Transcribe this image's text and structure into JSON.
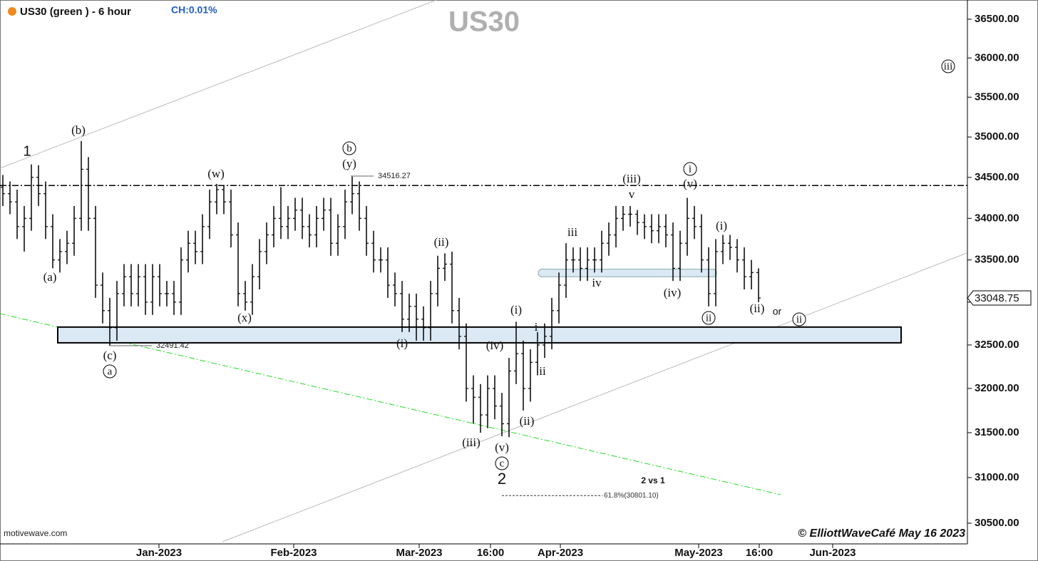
{
  "chart_data": {
    "type": "ohlc",
    "title": "US30 (green ) - 6 hour",
    "change_label": "CH:0.01%",
    "watermark": "US30",
    "source": "motivewave.com",
    "credit": "© ElliottWaveCafé May 16 2023",
    "color": "#000000",
    "log_scale": true,
    "ylim": [
      30276,
      36751
    ],
    "yticks": [
      {
        "value": 30500,
        "label": "30500.00"
      },
      {
        "value": 31000,
        "label": "31000.00"
      },
      {
        "value": 31500,
        "label": "31500.00"
      },
      {
        "value": 32000,
        "label": "32000.00"
      },
      {
        "value": 32500,
        "label": "32500.00"
      },
      {
        "value": 33000,
        "label": "33000.00"
      },
      {
        "value": 33500,
        "label": "33500.00"
      },
      {
        "value": 34000,
        "label": "34000.00"
      },
      {
        "value": 34500,
        "label": "34500.00"
      },
      {
        "value": 35000,
        "label": "35000.00"
      },
      {
        "value": 35500,
        "label": "35500.00"
      },
      {
        "value": 36000,
        "label": "36000.00"
      },
      {
        "value": 36500,
        "label": "36500.00"
      }
    ],
    "xticks": [
      {
        "value": 21.9,
        "label": "Jan-2023"
      },
      {
        "value": 40.8,
        "label": "Feb-2023"
      },
      {
        "value": 58.4,
        "label": "Mar-2023"
      },
      {
        "value": 68.4,
        "label": "16:00"
      },
      {
        "value": 78.2,
        "label": "Apr-2023"
      },
      {
        "value": 97.6,
        "label": "May-2023"
      },
      {
        "value": 106.1,
        "label": "16:00"
      },
      {
        "value": 116.4,
        "label": "Jun-2023"
      }
    ],
    "open": [
      34380,
      34300,
      34200,
      33900,
      34000,
      34500,
      34300,
      33900,
      33500,
      33600,
      33700,
      34000,
      34600,
      34000,
      33200,
      32900,
      32700,
      33100,
      33300,
      33100,
      33300,
      33000,
      33300,
      33100,
      33100,
      33000,
      33500,
      33700,
      33600,
      33900,
      34200,
      34350,
      34200,
      33800,
      33100,
      33000,
      33300,
      33600,
      33800,
      34000,
      33900,
      34000,
      34100,
      33900,
      33800,
      34000,
      34100,
      33700,
      33900,
      34200,
      34300,
      34000,
      33700,
      33500,
      33500,
      33200,
      33100,
      32800,
      32950,
      32800,
      32700,
      33100,
      33400,
      33450,
      32900,
      32600,
      32000,
      31900,
      31700,
      32000,
      31800,
      31600,
      32200,
      32400,
      32000,
      32300,
      32500,
      32600,
      32900,
      33200,
      33500,
      33500,
      33400,
      33500,
      33500,
      33700,
      33800,
      34000,
      34050,
      34050,
      33950,
      33900,
      33850,
      33900,
      33800,
      33400,
      33700,
      34000,
      33900,
      33500,
      33100,
      33600,
      33700,
      33650,
      33500,
      33300,
      33350
    ],
    "high": [
      34530,
      34450,
      34350,
      34150,
      34660,
      34650,
      34450,
      34050,
      33750,
      33850,
      34150,
      34950,
      34750,
      34150,
      33350,
      33050,
      33250,
      33450,
      33450,
      33450,
      33450,
      33450,
      33450,
      33250,
      33250,
      33650,
      33850,
      33850,
      34050,
      34350,
      34420,
      34400,
      34350,
      33950,
      33250,
      33450,
      33750,
      33950,
      34150,
      34380,
      34150,
      34250,
      34250,
      34050,
      34150,
      34250,
      34250,
      34050,
      34350,
      34510,
      34450,
      34150,
      33850,
      33650,
      33650,
      33350,
      33250,
      33100,
      33100,
      32950,
      33250,
      33550,
      33580,
      33600,
      33050,
      32750,
      32150,
      32050,
      32150,
      32150,
      31950,
      32350,
      32770,
      32550,
      32450,
      32650,
      32750,
      33050,
      33350,
      33700,
      33650,
      33650,
      33650,
      33650,
      33850,
      33950,
      34150,
      34150,
      34150,
      34100,
      34050,
      34050,
      34050,
      34050,
      33950,
      33850,
      34250,
      34150,
      34050,
      33650,
      33750,
      33800,
      33800,
      33750,
      33650,
      33500,
      33400
    ],
    "low": [
      34150,
      34050,
      33750,
      33600,
      33850,
      34150,
      33750,
      33400,
      33350,
      33450,
      33550,
      33850,
      33850,
      33050,
      32750,
      32490,
      32550,
      32950,
      32950,
      32950,
      32850,
      32850,
      32950,
      32950,
      32850,
      32850,
      33350,
      33450,
      33450,
      33750,
      34050,
      34050,
      33650,
      32950,
      32900,
      32850,
      33150,
      33450,
      33650,
      33750,
      33750,
      33850,
      33750,
      33650,
      33650,
      33850,
      33550,
      33550,
      33750,
      34050,
      33850,
      33550,
      33350,
      33350,
      33050,
      32950,
      32650,
      32650,
      32550,
      32550,
      32550,
      32950,
      33250,
      32750,
      32450,
      31850,
      31600,
      31500,
      31550,
      31650,
      31460,
      31450,
      32050,
      31750,
      31850,
      32150,
      32350,
      32450,
      32750,
      33050,
      33350,
      33250,
      33250,
      33350,
      33350,
      33550,
      33650,
      33850,
      33900,
      33800,
      33750,
      33700,
      33700,
      33650,
      33250,
      33250,
      33550,
      33750,
      33350,
      32950,
      32950,
      33450,
      33500,
      33350,
      33150,
      33150,
      33000
    ],
    "close": [
      34300,
      34200,
      33900,
      34000,
      34500,
      34300,
      33900,
      33500,
      33600,
      33700,
      34000,
      34600,
      34000,
      33200,
      32900,
      32700,
      33100,
      33300,
      33100,
      33300,
      33000,
      33300,
      33100,
      33100,
      33000,
      33500,
      33700,
      33600,
      33900,
      34200,
      34350,
      34200,
      33800,
      33100,
      33000,
      33300,
      33600,
      33800,
      34000,
      33900,
      34000,
      34100,
      33900,
      33800,
      34000,
      34100,
      33700,
      33900,
      34200,
      34300,
      34000,
      33700,
      33500,
      33500,
      33200,
      33100,
      32800,
      32950,
      32800,
      32700,
      33100,
      33400,
      33450,
      32900,
      32600,
      32000,
      31900,
      31700,
      32000,
      31800,
      31600,
      32200,
      32400,
      32000,
      32300,
      32500,
      32600,
      32900,
      33200,
      33500,
      33500,
      33400,
      33500,
      33500,
      33700,
      33800,
      34000,
      34050,
      34050,
      33950,
      33900,
      33850,
      33900,
      33800,
      33400,
      33700,
      34000,
      33900,
      33500,
      33100,
      33600,
      33700,
      33650,
      33500,
      33300,
      33350,
      33048.75
    ],
    "resistance_level": 34400,
    "support_zone": [
      32525,
      32708
    ],
    "consolidation_zone": [
      33300,
      33390
    ],
    "marked_levels": [
      34516.27,
      32491.42
    ],
    "fib_level": 30801.1,
    "fib_label": "61.8%(30801.10)",
    "annotations": [
      "1",
      "(b)",
      "(a)",
      "(c)",
      "a",
      "(w)",
      "(x)",
      "b",
      "(y)",
      "(ii)",
      "(i)",
      "(iii)",
      "(iv)",
      "(v)",
      "c",
      "2",
      "(i)",
      "i",
      "ii",
      "(ii)",
      "iii",
      "iv",
      "(iii)",
      "v",
      "i",
      "(v)",
      "(iv)",
      "ii",
      "(i)",
      "(ii)",
      "or",
      "ii",
      "iii",
      "2 vs 1"
    ]
  }
}
